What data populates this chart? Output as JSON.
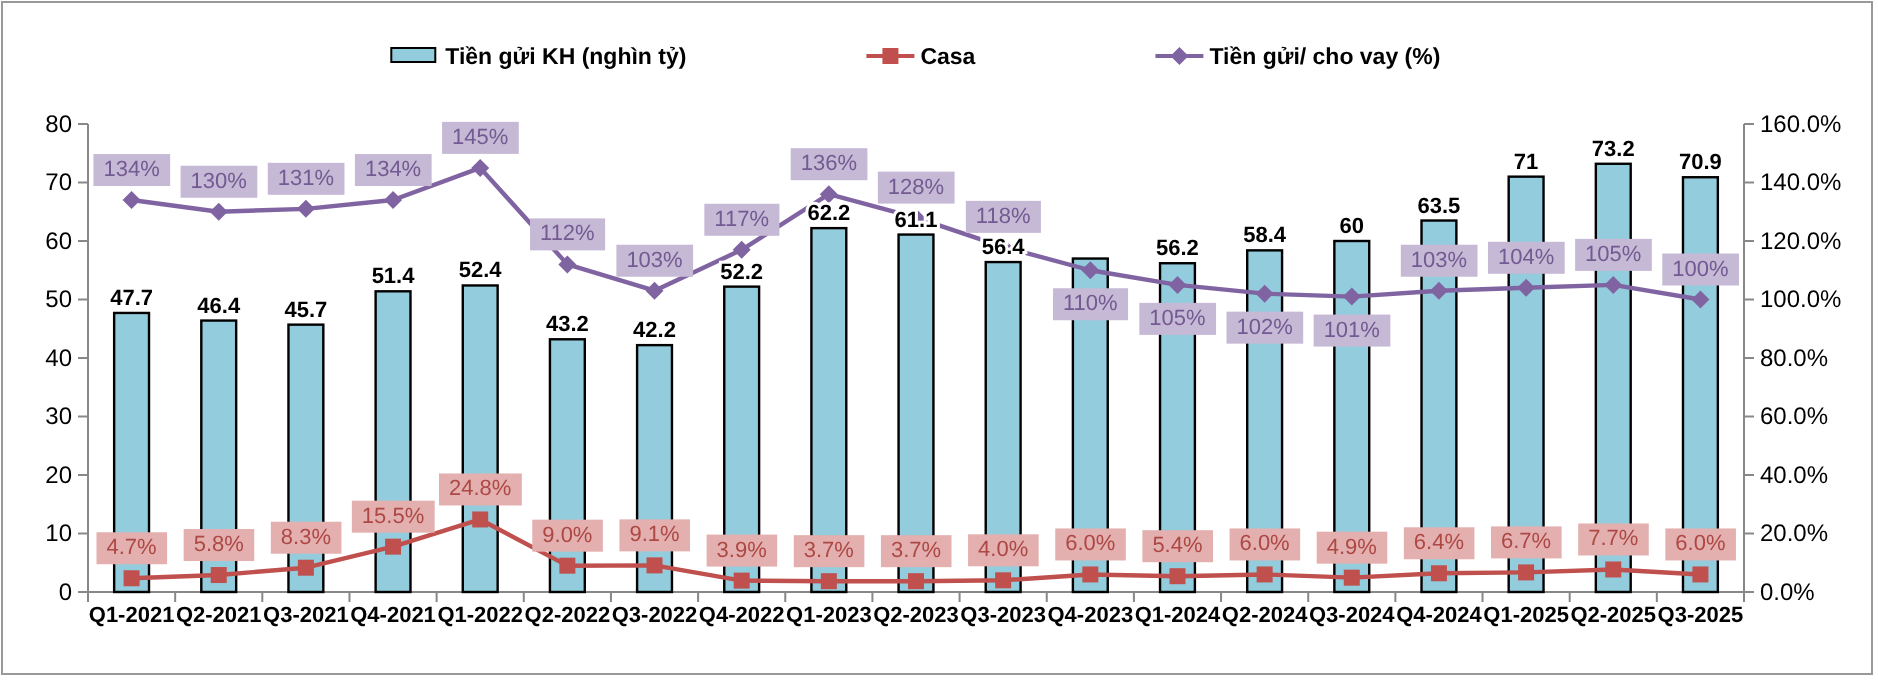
{
  "chart_data": {
    "type": "bar",
    "categories": [
      "Q1-2021",
      "Q2-2021",
      "Q3-2021",
      "Q4-2021",
      "Q1-2022",
      "Q2-2022",
      "Q3-2022",
      "Q4-2022",
      "Q1-2023",
      "Q2-2023",
      "Q3-2023",
      "Q4-2023",
      "Q1-2024",
      "Q2-2024",
      "Q3-2024",
      "Q4-2024",
      "Q1-2025",
      "Q2-2025",
      "Q3-2025"
    ],
    "series": [
      {
        "name": "Tiền gửi KH (nghìn tỷ)",
        "type": "bar",
        "color": "#93cddd",
        "values": [
          47.7,
          46.4,
          45.7,
          51.4,
          52.4,
          43.2,
          42.2,
          52.2,
          62.2,
          61.1,
          56.4,
          57,
          56.2,
          58.4,
          60,
          63.5,
          71,
          73.2,
          70.9
        ],
        "value_labels": [
          "47.7",
          "46.4",
          "45.7",
          "51.4",
          "52.4",
          "43.2",
          "42.2",
          "52.2",
          "62.2",
          "61.1",
          "56.4",
          null,
          "56.2",
          "58.4",
          "60",
          "63.5",
          "71",
          "73.2",
          "70.9"
        ]
      },
      {
        "name": "Casa",
        "type": "line",
        "axis": "y2",
        "color": "#c0504d",
        "marker": "square",
        "values": [
          4.7,
          5.8,
          8.3,
          15.5,
          24.8,
          9.0,
          9.1,
          3.9,
          3.7,
          3.7,
          4.0,
          6.0,
          5.4,
          6.0,
          4.9,
          6.4,
          6.7,
          7.7,
          6.0
        ],
        "value_labels": [
          "4.7%",
          "5.8%",
          "8.3%",
          "15.5%",
          "24.8%",
          "9.0%",
          "9.1%",
          "3.9%",
          "3.7%",
          "3.7%",
          "4.0%",
          "6.0%",
          "5.4%",
          "6.0%",
          "4.9%",
          "6.4%",
          "6.7%",
          "7.7%",
          "6.0%"
        ]
      },
      {
        "name": "Tiền gửi/ cho vay (%)",
        "type": "line",
        "axis": "y2",
        "color": "#8064a2",
        "marker": "diamond",
        "values": [
          134,
          130,
          131,
          134,
          145,
          112,
          103,
          117,
          136,
          128,
          118,
          110,
          105,
          102,
          101,
          103,
          104,
          105,
          100
        ],
        "value_labels": [
          "134%",
          "130%",
          "131%",
          "134%",
          "145%",
          "112%",
          "103%",
          "117%",
          "136%",
          "128%",
          "118%",
          "110%",
          "105%",
          "102%",
          "101%",
          "103%",
          "104%",
          "105%",
          "100%"
        ]
      }
    ],
    "ylim": [
      0,
      80
    ],
    "yticks": [
      0,
      10,
      20,
      30,
      40,
      50,
      60,
      70,
      80
    ],
    "y2lim": [
      0,
      160
    ],
    "y2ticks": [
      {
        "value": 0,
        "label": "0.0%"
      },
      {
        "value": 20,
        "label": "20.0%"
      },
      {
        "value": 40,
        "label": "40.0%"
      },
      {
        "value": 60,
        "label": "60.0%"
      },
      {
        "value": 80,
        "label": "80.0%"
      },
      {
        "value": 100,
        "label": "100.0%"
      },
      {
        "value": 120,
        "label": "120.0%"
      },
      {
        "value": 140,
        "label": "140.0%"
      },
      {
        "value": 160,
        "label": "160.0%"
      }
    ],
    "legend": "top",
    "grid": false
  }
}
